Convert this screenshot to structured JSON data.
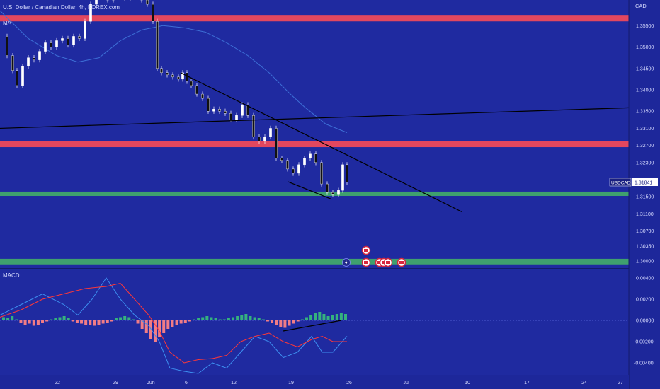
{
  "header": {
    "symbol_title": "U.S. Dollar / Canadian Dollar, 4h, FOREX.com",
    "indicator": "MA"
  },
  "price_axis": {
    "currency": "CAD",
    "ticks": [
      "1.35500",
      "1.35000",
      "1.34500",
      "1.34000",
      "1.33500",
      "1.33100",
      "1.32700",
      "1.32300",
      "1.31900",
      "1.31500",
      "1.31100",
      "1.30700",
      "1.30350",
      "1.30000"
    ]
  },
  "price_tag": {
    "symbol": "USDCAD",
    "value": "1.31841"
  },
  "macd_panel": {
    "title": "MACD",
    "ticks": [
      "0.00400",
      "0.00200",
      "0.00000",
      "-0.00200",
      "-0.00400"
    ]
  },
  "time_axis": {
    "labels": [
      "22",
      "29",
      "Jun",
      "6",
      "12",
      "19",
      "26",
      "Jul",
      "10",
      "17",
      "24",
      "27"
    ]
  },
  "colors": {
    "background": "#1f2aa0",
    "resistance_zone": "#e2475f",
    "support_zone": "#3fa06e",
    "candle": "#ffffff",
    "trendline": "#000000",
    "ma_line": "#3d6fd6",
    "macd_line": "#3d8ff0",
    "signal_line": "#ff3838",
    "hist_positive": "#35b17e",
    "hist_negative": "#f17c86"
  },
  "chart_data": {
    "type": "candlestick",
    "title": "U.S. Dollar / Canadian Dollar, 4h, FOREX.com",
    "ylim": [
      1.2985,
      1.361
    ],
    "zones": [
      {
        "kind": "resistance",
        "from": 1.356,
        "to": 1.3575
      },
      {
        "kind": "resistance",
        "from": 1.3266,
        "to": 1.328
      },
      {
        "kind": "support",
        "from": 1.3152,
        "to": 1.3162
      },
      {
        "kind": "support",
        "from": 1.2992,
        "to": 1.3005
      }
    ],
    "last_price": 1.31841,
    "ma_path": [
      [
        0,
        1.3585
      ],
      [
        40,
        1.352
      ],
      [
        80,
        1.348
      ],
      [
        110,
        1.3465
      ],
      [
        140,
        1.3475
      ],
      [
        170,
        1.3515
      ],
      [
        200,
        1.354
      ],
      [
        230,
        1.355
      ],
      [
        260,
        1.3545
      ],
      [
        290,
        1.3535
      ],
      [
        320,
        1.351
      ],
      [
        350,
        1.348
      ],
      [
        380,
        1.344
      ],
      [
        410,
        1.339
      ],
      [
        430,
        1.336
      ],
      [
        460,
        1.332
      ],
      [
        490,
        1.33
      ]
    ],
    "close_path": [
      [
        2,
        1.3525
      ],
      [
        10,
        1.348
      ],
      [
        18,
        1.3445
      ],
      [
        24,
        1.341
      ],
      [
        32,
        1.3455
      ],
      [
        40,
        1.3475
      ],
      [
        48,
        1.347
      ],
      [
        56,
        1.349
      ],
      [
        64,
        1.351
      ],
      [
        72,
        1.35
      ],
      [
        80,
        1.3515
      ],
      [
        88,
        1.352
      ],
      [
        96,
        1.3505
      ],
      [
        104,
        1.3525
      ],
      [
        112,
        1.352
      ],
      [
        120,
        1.356
      ],
      [
        128,
        1.36
      ],
      [
        136,
        1.362
      ],
      [
        144,
        1.3625
      ],
      [
        152,
        1.361
      ],
      [
        160,
        1.3625
      ],
      [
        168,
        1.363
      ],
      [
        176,
        1.3615
      ],
      [
        184,
        1.362
      ],
      [
        192,
        1.362
      ],
      [
        200,
        1.361
      ],
      [
        208,
        1.36
      ],
      [
        216,
        1.356
      ],
      [
        222,
        1.345
      ],
      [
        228,
        1.344
      ],
      [
        236,
        1.3435
      ],
      [
        244,
        1.343
      ],
      [
        252,
        1.3425
      ],
      [
        258,
        1.344
      ],
      [
        264,
        1.342
      ],
      [
        270,
        1.341
      ],
      [
        278,
        1.339
      ],
      [
        286,
        1.338
      ],
      [
        294,
        1.335
      ],
      [
        302,
        1.3355
      ],
      [
        310,
        1.335
      ],
      [
        318,
        1.3345
      ],
      [
        326,
        1.333
      ],
      [
        334,
        1.334
      ],
      [
        342,
        1.3365
      ],
      [
        350,
        1.334
      ],
      [
        358,
        1.329
      ],
      [
        366,
        1.328
      ],
      [
        374,
        1.329
      ],
      [
        382,
        1.331
      ],
      [
        390,
        1.324
      ],
      [
        398,
        1.3235
      ],
      [
        406,
        1.3215
      ],
      [
        414,
        1.3205
      ],
      [
        422,
        1.3225
      ],
      [
        430,
        1.324
      ],
      [
        438,
        1.325
      ],
      [
        446,
        1.323
      ],
      [
        454,
        1.318
      ],
      [
        462,
        1.316
      ],
      [
        470,
        1.3155
      ],
      [
        478,
        1.3165
      ],
      [
        484,
        1.3225
      ],
      [
        490,
        1.3184
      ]
    ],
    "trendlines": [
      {
        "x1": 255,
        "y1": 1.344,
        "x2": 652,
        "y2": 1.3115
      },
      {
        "x1": 0,
        "y1": 1.331,
        "x2": 888,
        "y2": 1.3358
      },
      {
        "x1": 407,
        "y1": 1.3185,
        "x2": 467,
        "y2": 1.3145
      }
    ],
    "markers": [
      "lightning",
      "flag",
      "flag",
      "flag",
      "flag",
      "flag",
      "flag"
    ],
    "macd": {
      "ylim": [
        -0.005,
        0.0048
      ],
      "macd_path": [
        [
          0,
          0.0005
        ],
        [
          30,
          0.0015
        ],
        [
          60,
          0.0025
        ],
        [
          90,
          0.0015
        ],
        [
          110,
          0.0005
        ],
        [
          130,
          0.002
        ],
        [
          150,
          0.004
        ],
        [
          170,
          0.002
        ],
        [
          190,
          0.0005
        ],
        [
          210,
          -0.0005
        ],
        [
          225,
          -0.002
        ],
        [
          240,
          -0.0045
        ],
        [
          260,
          -0.0048
        ],
        [
          280,
          -0.005
        ],
        [
          300,
          -0.004
        ],
        [
          320,
          -0.0045
        ],
        [
          340,
          -0.003
        ],
        [
          360,
          -0.0015
        ],
        [
          380,
          -0.002
        ],
        [
          400,
          -0.0035
        ],
        [
          420,
          -0.003
        ],
        [
          440,
          -0.0015
        ],
        [
          455,
          -0.003
        ],
        [
          470,
          -0.003
        ],
        [
          490,
          -0.0015
        ]
      ],
      "signal_path": [
        [
          0,
          0.0003
        ],
        [
          30,
          0.001
        ],
        [
          60,
          0.002
        ],
        [
          90,
          0.0025
        ],
        [
          120,
          0.003
        ],
        [
          150,
          0.0032
        ],
        [
          170,
          0.0035
        ],
        [
          190,
          0.002
        ],
        [
          210,
          0.0005
        ],
        [
          225,
          -0.001
        ],
        [
          240,
          -0.003
        ],
        [
          260,
          -0.004
        ],
        [
          280,
          -0.0037
        ],
        [
          300,
          -0.0036
        ],
        [
          320,
          -0.0033
        ],
        [
          340,
          -0.002
        ],
        [
          360,
          -0.0015
        ],
        [
          380,
          -0.0012
        ],
        [
          400,
          -0.002
        ],
        [
          420,
          -0.0025
        ],
        [
          440,
          -0.0018
        ],
        [
          455,
          -0.0015
        ],
        [
          470,
          -0.002
        ],
        [
          490,
          -0.002
        ]
      ],
      "histogram": [
        0.0003,
        0.0002,
        0.0004,
        0.0001,
        -0.0002,
        -0.0004,
        -0.0003,
        -0.0005,
        -0.0004,
        -0.0002,
        -0.0001,
        0.0001,
        0.0002,
        0.0003,
        0.0004,
        0.0002,
        -0.0001,
        -0.0002,
        -0.0003,
        -0.0004,
        -0.0004,
        -0.0005,
        -0.0004,
        -0.0003,
        -0.0002,
        -0.0001,
        0.0002,
        0.0003,
        0.0004,
        0.0003,
        0.0001,
        -0.0003,
        -0.0008,
        -0.0012,
        -0.0018,
        -0.002,
        -0.0016,
        -0.0012,
        -0.0008,
        -0.0006,
        -0.0004,
        -0.0003,
        -0.0002,
        -0.0001,
        0.0001,
        0.0002,
        0.0003,
        0.0004,
        0.0003,
        0.0002,
        0.0001,
        0.0001,
        0.0002,
        0.0003,
        0.0004,
        0.0005,
        0.0006,
        0.0004,
        0.0003,
        0.0002,
        0.0001,
        -0.0001,
        -0.0002,
        -0.0004,
        -0.0006,
        -0.0007,
        -0.0005,
        -0.0003,
        -0.0001,
        0.0001,
        0.0003,
        0.0005,
        0.0007,
        0.0008,
        0.0006,
        0.0004,
        0.0005,
        0.0006,
        0.0007,
        0.0006
      ],
      "hist_x_range": [
        5,
        488
      ],
      "divergence_line": {
        "x1": 400,
        "y1": -0.001,
        "x2": 482,
        "y2": 0.0
      }
    }
  }
}
